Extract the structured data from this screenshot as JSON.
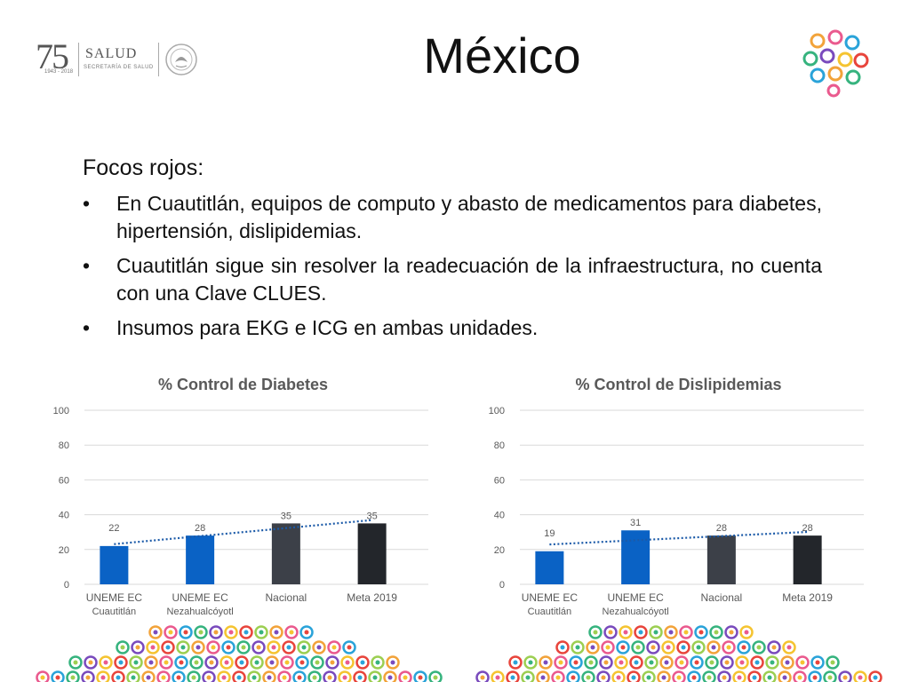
{
  "header": {
    "title": "México",
    "logo": {
      "number": "75",
      "brand": "SALUD",
      "subtitle": "SECRETARÍA DE SALUD",
      "years": "1943 - 2018"
    }
  },
  "focus": {
    "title": "Focos rojos:",
    "bullet_symbol": "•",
    "items": [
      "En Cuautitlán, equipos de computo y abasto de medicamentos para diabetes, hipertensión, dislipidemias.",
      "Cuautitlán sigue sin resolver la readecuación de la infraestructura, no cuenta con una Clave CLUES.",
      "Insumos para EKG e ICG en ambas unidades."
    ]
  },
  "colors": {
    "bar_blue": "#0a62c5",
    "bar_dark_gray": "#3c4048",
    "bar_black": "#23262b",
    "trend": "#1b5aa8",
    "grid": "#d9d9d9",
    "axis_text": "#595959",
    "title_text": "#595959"
  },
  "chart_data": [
    {
      "type": "bar",
      "title": "% Control de Diabetes",
      "categories": [
        [
          "UNEME EC",
          "Cuautitlán"
        ],
        [
          "UNEME EC",
          "Nezahualcóyotl"
        ],
        [
          "Nacional"
        ],
        [
          "Meta 2019"
        ]
      ],
      "values": [
        22,
        28,
        35,
        35
      ],
      "value_labels": [
        "22",
        "28",
        "35",
        "35"
      ],
      "bar_colors": [
        "#0a62c5",
        "#0a62c5",
        "#3c4048",
        "#23262b"
      ],
      "ylim": [
        0,
        100
      ],
      "yticks": [
        0,
        20,
        40,
        60,
        80,
        100
      ],
      "trendline": "linear dotted",
      "grid": true
    },
    {
      "type": "bar",
      "title": "% Control de Dislipidemias",
      "categories": [
        [
          "UNEME EC",
          "Cuautitlán"
        ],
        [
          "UNEME EC",
          "Nezahualcóyotl"
        ],
        [
          "Nacional"
        ],
        [
          "Meta 2019"
        ]
      ],
      "values": [
        19,
        31,
        28,
        28
      ],
      "value_labels": [
        "19",
        "31",
        "28",
        "28"
      ],
      "bar_colors": [
        "#0a62c5",
        "#0a62c5",
        "#3c4048",
        "#23262b"
      ],
      "ylim": [
        0,
        100
      ],
      "yticks": [
        0,
        20,
        40,
        60,
        80,
        100
      ],
      "trendline": "linear dotted",
      "grid": true
    }
  ]
}
